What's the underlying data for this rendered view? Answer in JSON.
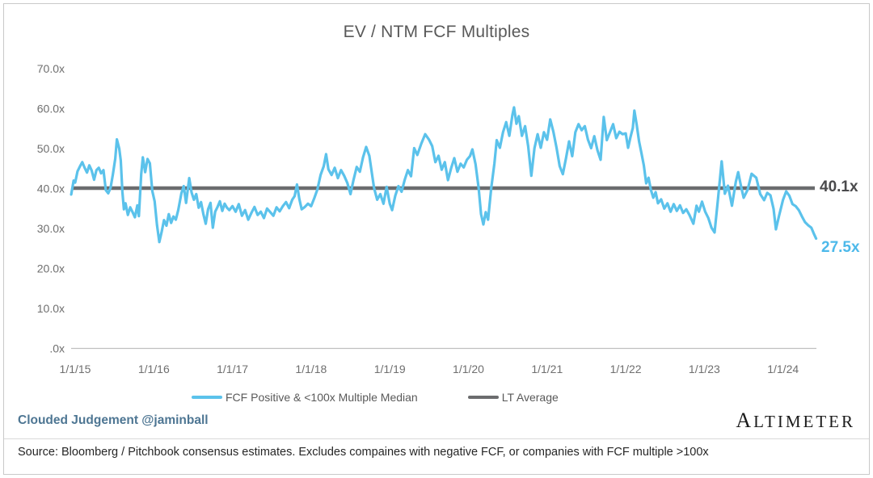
{
  "header": {
    "title": "EV / NTM FCF Multiples"
  },
  "chart_data": {
    "type": "line",
    "title": "EV / NTM FCF Multiples",
    "grid": false,
    "x_unit": "years since 1/1/15",
    "x_tick_labels": [
      "1/1/15",
      "1/1/16",
      "1/1/17",
      "1/1/18",
      "1/1/19",
      "1/1/20",
      "1/1/21",
      "1/1/22",
      "1/1/23",
      "1/1/24"
    ],
    "y_ticks": [
      {
        "label": "70.0x",
        "value": 70
      },
      {
        "label": "60.0x",
        "value": 60
      },
      {
        "label": "50.0x",
        "value": 50
      },
      {
        "label": "40.0x",
        "value": 40
      },
      {
        "label": "30.0x",
        "value": 30
      },
      {
        "label": "20.0x",
        "value": 20
      },
      {
        "label": "10.0x",
        "value": 10
      },
      {
        "label": ".0x",
        "value": 0
      }
    ],
    "ylim": [
      0,
      70
    ],
    "legend_position": "bottom",
    "legend": [
      {
        "name": "FCF Positive & <100x Multiple Median",
        "color": "#5BC2EB"
      },
      {
        "name": "LT Average",
        "color": "#6B6C6E"
      }
    ],
    "lt_average": {
      "label": "40.1x",
      "value": 40.1
    },
    "last_point": {
      "label": "27.5x",
      "value": 27.5,
      "t": 9.42
    },
    "series": [
      {
        "name": "FCF Positive & <100x Multiple Median",
        "color": "#5BC2EB",
        "points": [
          [
            -0.05,
            38.5
          ],
          [
            -0.02,
            42.0
          ],
          [
            0.0,
            41.5
          ],
          [
            0.03,
            44.3
          ],
          [
            0.06,
            45.5
          ],
          [
            0.09,
            46.6
          ],
          [
            0.12,
            45.2
          ],
          [
            0.15,
            44.0
          ],
          [
            0.18,
            45.8
          ],
          [
            0.21,
            44.5
          ],
          [
            0.24,
            42.2
          ],
          [
            0.27,
            44.6
          ],
          [
            0.3,
            45.2
          ],
          [
            0.33,
            43.8
          ],
          [
            0.36,
            44.6
          ],
          [
            0.39,
            39.6
          ],
          [
            0.42,
            38.8
          ],
          [
            0.45,
            40.2
          ],
          [
            0.48,
            43.6
          ],
          [
            0.51,
            47.5
          ],
          [
            0.53,
            52.3
          ],
          [
            0.56,
            50.0
          ],
          [
            0.58,
            47.0
          ],
          [
            0.6,
            39.2
          ],
          [
            0.62,
            34.8
          ],
          [
            0.64,
            36.3
          ],
          [
            0.67,
            33.4
          ],
          [
            0.7,
            35.3
          ],
          [
            0.73,
            34.1
          ],
          [
            0.76,
            32.8
          ],
          [
            0.79,
            35.8
          ],
          [
            0.81,
            33.1
          ],
          [
            0.84,
            43.6
          ],
          [
            0.86,
            47.8
          ],
          [
            0.89,
            44.1
          ],
          [
            0.92,
            47.4
          ],
          [
            0.95,
            46.3
          ],
          [
            0.98,
            39.4
          ],
          [
            1.01,
            36.8
          ],
          [
            1.04,
            30.9
          ],
          [
            1.07,
            26.6
          ],
          [
            1.1,
            29.2
          ],
          [
            1.13,
            32.1
          ],
          [
            1.16,
            30.7
          ],
          [
            1.19,
            33.6
          ],
          [
            1.22,
            31.4
          ],
          [
            1.25,
            33.0
          ],
          [
            1.28,
            32.2
          ],
          [
            1.31,
            34.6
          ],
          [
            1.35,
            38.8
          ],
          [
            1.38,
            40.6
          ],
          [
            1.41,
            36.4
          ],
          [
            1.45,
            42.6
          ],
          [
            1.48,
            39.0
          ],
          [
            1.51,
            37.2
          ],
          [
            1.54,
            38.6
          ],
          [
            1.57,
            35.2
          ],
          [
            1.6,
            36.6
          ],
          [
            1.63,
            33.6
          ],
          [
            1.66,
            31.2
          ],
          [
            1.69,
            34.8
          ],
          [
            1.72,
            36.4
          ],
          [
            1.75,
            30.2
          ],
          [
            1.78,
            34.2
          ],
          [
            1.81,
            35.4
          ],
          [
            1.84,
            36.8
          ],
          [
            1.87,
            34.4
          ],
          [
            1.9,
            36.2
          ],
          [
            1.93,
            35.2
          ],
          [
            1.96,
            34.6
          ],
          [
            2.0,
            35.6
          ],
          [
            2.04,
            34.2
          ],
          [
            2.08,
            36.1
          ],
          [
            2.12,
            33.2
          ],
          [
            2.16,
            34.6
          ],
          [
            2.2,
            32.2
          ],
          [
            2.24,
            33.9
          ],
          [
            2.28,
            35.4
          ],
          [
            2.32,
            33.4
          ],
          [
            2.36,
            34.2
          ],
          [
            2.4,
            32.6
          ],
          [
            2.44,
            35.0
          ],
          [
            2.48,
            34.1
          ],
          [
            2.52,
            33.2
          ],
          [
            2.56,
            35.3
          ],
          [
            2.6,
            34.3
          ],
          [
            2.64,
            35.6
          ],
          [
            2.68,
            36.6
          ],
          [
            2.72,
            35.1
          ],
          [
            2.76,
            37.2
          ],
          [
            2.79,
            38.1
          ],
          [
            2.82,
            41.0
          ],
          [
            2.85,
            37.4
          ],
          [
            2.88,
            34.8
          ],
          [
            2.92,
            35.4
          ],
          [
            2.96,
            36.2
          ],
          [
            3.0,
            35.6
          ],
          [
            3.04,
            37.6
          ],
          [
            3.08,
            39.8
          ],
          [
            3.12,
            43.4
          ],
          [
            3.16,
            45.6
          ],
          [
            3.19,
            48.6
          ],
          [
            3.22,
            44.8
          ],
          [
            3.26,
            43.4
          ],
          [
            3.3,
            45.2
          ],
          [
            3.34,
            42.6
          ],
          [
            3.38,
            44.6
          ],
          [
            3.42,
            43.2
          ],
          [
            3.46,
            41.4
          ],
          [
            3.5,
            38.6
          ],
          [
            3.54,
            42.2
          ],
          [
            3.58,
            45.4
          ],
          [
            3.62,
            44.2
          ],
          [
            3.66,
            47.8
          ],
          [
            3.7,
            50.4
          ],
          [
            3.74,
            48.2
          ],
          [
            3.77,
            44.2
          ],
          [
            3.8,
            40.2
          ],
          [
            3.84,
            37.2
          ],
          [
            3.88,
            38.6
          ],
          [
            3.92,
            36.2
          ],
          [
            3.96,
            40.4
          ],
          [
            4.0,
            36.2
          ],
          [
            4.03,
            34.6
          ],
          [
            4.07,
            38.2
          ],
          [
            4.11,
            40.6
          ],
          [
            4.15,
            39.2
          ],
          [
            4.19,
            42.2
          ],
          [
            4.23,
            44.6
          ],
          [
            4.27,
            43.1
          ],
          [
            4.31,
            50.1
          ],
          [
            4.35,
            48.4
          ],
          [
            4.4,
            51.2
          ],
          [
            4.45,
            53.6
          ],
          [
            4.5,
            52.2
          ],
          [
            4.54,
            50.6
          ],
          [
            4.58,
            46.6
          ],
          [
            4.62,
            48.2
          ],
          [
            4.66,
            44.7
          ],
          [
            4.7,
            46.6
          ],
          [
            4.74,
            42.1
          ],
          [
            4.78,
            45.1
          ],
          [
            4.82,
            47.6
          ],
          [
            4.86,
            44.2
          ],
          [
            4.9,
            46.2
          ],
          [
            4.94,
            45.3
          ],
          [
            4.98,
            47.2
          ],
          [
            5.02,
            48.1
          ],
          [
            5.05,
            49.8
          ],
          [
            5.09,
            46.1
          ],
          [
            5.13,
            40.2
          ],
          [
            5.16,
            33.6
          ],
          [
            5.19,
            31.0
          ],
          [
            5.22,
            34.1
          ],
          [
            5.25,
            32.2
          ],
          [
            5.29,
            40.1
          ],
          [
            5.33,
            46.2
          ],
          [
            5.36,
            52.1
          ],
          [
            5.4,
            50.2
          ],
          [
            5.44,
            54.1
          ],
          [
            5.48,
            56.6
          ],
          [
            5.52,
            53.2
          ],
          [
            5.56,
            58.5
          ],
          [
            5.58,
            60.3
          ],
          [
            5.61,
            56.2
          ],
          [
            5.64,
            58.1
          ],
          [
            5.68,
            53.2
          ],
          [
            5.72,
            55.6
          ],
          [
            5.76,
            50.6
          ],
          [
            5.8,
            43.2
          ],
          [
            5.84,
            50.1
          ],
          [
            5.88,
            53.6
          ],
          [
            5.92,
            50.2
          ],
          [
            5.96,
            54.1
          ],
          [
            6.0,
            52.2
          ],
          [
            6.04,
            57.3
          ],
          [
            6.08,
            54.2
          ],
          [
            6.12,
            50.2
          ],
          [
            6.16,
            45.6
          ],
          [
            6.2,
            43.6
          ],
          [
            6.24,
            47.6
          ],
          [
            6.28,
            51.8
          ],
          [
            6.32,
            48.1
          ],
          [
            6.36,
            54.1
          ],
          [
            6.4,
            56.1
          ],
          [
            6.44,
            54.6
          ],
          [
            6.48,
            55.6
          ],
          [
            6.52,
            52.2
          ],
          [
            6.56,
            50.1
          ],
          [
            6.6,
            53.1
          ],
          [
            6.64,
            49.6
          ],
          [
            6.68,
            47.2
          ],
          [
            6.72,
            57.9
          ],
          [
            6.76,
            52.1
          ],
          [
            6.8,
            54.1
          ],
          [
            6.84,
            56.1
          ],
          [
            6.88,
            52.6
          ],
          [
            6.92,
            54.2
          ],
          [
            6.96,
            53.6
          ],
          [
            7.0,
            53.8
          ],
          [
            7.03,
            50.2
          ],
          [
            7.06,
            52.8
          ],
          [
            7.09,
            55.2
          ],
          [
            7.11,
            59.5
          ],
          [
            7.14,
            55.9
          ],
          [
            7.17,
            51.8
          ],
          [
            7.2,
            48.8
          ],
          [
            7.23,
            45.8
          ],
          [
            7.26,
            41.3
          ],
          [
            7.29,
            42.7
          ],
          [
            7.32,
            39.7
          ],
          [
            7.35,
            37.7
          ],
          [
            7.38,
            39.1
          ],
          [
            7.41,
            36.3
          ],
          [
            7.45,
            37.3
          ],
          [
            7.49,
            35.0
          ],
          [
            7.53,
            36.3
          ],
          [
            7.57,
            34.2
          ],
          [
            7.61,
            36.1
          ],
          [
            7.65,
            34.4
          ],
          [
            7.69,
            35.8
          ],
          [
            7.73,
            33.9
          ],
          [
            7.77,
            34.8
          ],
          [
            7.81,
            33.4
          ],
          [
            7.86,
            31.2
          ],
          [
            7.9,
            35.7
          ],
          [
            7.93,
            34.2
          ],
          [
            7.97,
            36.7
          ],
          [
            8.01,
            34.2
          ],
          [
            8.05,
            32.6
          ],
          [
            8.09,
            30.2
          ],
          [
            8.13,
            29.0
          ],
          [
            8.17,
            36.7
          ],
          [
            8.22,
            46.8
          ],
          [
            8.26,
            38.7
          ],
          [
            8.3,
            40.7
          ],
          [
            8.35,
            35.7
          ],
          [
            8.4,
            41.7
          ],
          [
            8.43,
            44.1
          ],
          [
            8.47,
            40.2
          ],
          [
            8.5,
            37.7
          ],
          [
            8.55,
            39.7
          ],
          [
            8.6,
            43.7
          ],
          [
            8.66,
            42.7
          ],
          [
            8.71,
            38.6
          ],
          [
            8.76,
            37.1
          ],
          [
            8.8,
            38.9
          ],
          [
            8.84,
            38.3
          ],
          [
            8.88,
            34.9
          ],
          [
            8.91,
            29.8
          ],
          [
            8.95,
            33.2
          ],
          [
            9.0,
            37.2
          ],
          [
            9.04,
            39.3
          ],
          [
            9.08,
            38.2
          ],
          [
            9.12,
            36.1
          ],
          [
            9.16,
            35.6
          ],
          [
            9.2,
            34.6
          ],
          [
            9.24,
            33.0
          ],
          [
            9.28,
            31.6
          ],
          [
            9.32,
            30.8
          ],
          [
            9.36,
            30.2
          ],
          [
            9.39,
            28.8
          ],
          [
            9.42,
            27.5
          ]
        ]
      },
      {
        "name": "LT Average",
        "color": "#6B6C6E",
        "type": "hline",
        "value": 40.1
      }
    ]
  },
  "footer": {
    "attribution": "Clouded Judgement @jaminball",
    "brand": "ALTIMETER",
    "source": "Source: Bloomberg / Pitchbook consensus estimates. Excludes compaines with negative FCF, or companies with FCF multiple >100x"
  },
  "colors": {
    "series_blue": "#5BC2EB",
    "lt_average_gray": "#6B6C6E",
    "title_gray": "#595959",
    "tick_gray": "#6F6F6F",
    "attribution_blue": "#4E7693",
    "last_label_blue": "#4DB9EA",
    "lt_label_gray": "#4A4A4C"
  }
}
